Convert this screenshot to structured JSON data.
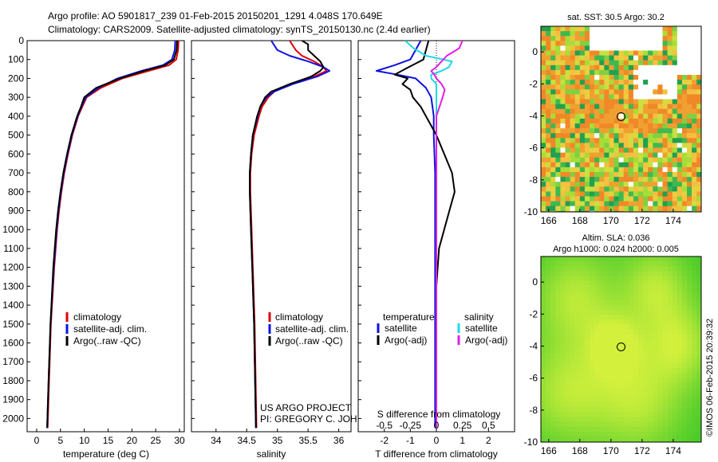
{
  "header": {
    "line1": "Argo profile: AO 5901817_239 01-Feb-2015 20150201_1291 4.048S 170.649E",
    "line2": "Climatology: CARS2009. Satellite-adjusted climatology: synTS_20150130.nc (2.4d earlier)"
  },
  "credits": {
    "project": "US ARGO PROJECT",
    "pi": "PI: GREGORY C. JOHNSON",
    "imos": "©IMOS 06-Feb-2015 20:39:32"
  },
  "colors": {
    "climatology": "#e00000",
    "satellite": "#1010e0",
    "argo": "#000000",
    "sat_salinity": "#20d8e8",
    "argo_salinity": "#e020e0"
  },
  "chart_data": [
    {
      "type": "line",
      "name": "temperature",
      "xlabel": "temperature (deg C)",
      "ylabel": "",
      "xlim": [
        -2,
        31
      ],
      "ylim": [
        2070,
        0
      ],
      "xticks": [
        "0",
        "5",
        "10",
        "15",
        "20",
        "25",
        "30"
      ],
      "xtick_values": [
        0,
        5,
        10,
        15,
        20,
        25,
        30
      ],
      "yticks": [
        "0",
        "100",
        "200",
        "300",
        "400",
        "500",
        "600",
        "700",
        "800",
        "900",
        "1000",
        "1100",
        "1200",
        "1300",
        "1400",
        "1500",
        "1600",
        "1700",
        "1800",
        "1900",
        "2000"
      ],
      "ytick_values": [
        0,
        100,
        200,
        300,
        400,
        500,
        600,
        700,
        800,
        900,
        1000,
        1100,
        1200,
        1300,
        1400,
        1500,
        1600,
        1700,
        1800,
        1900,
        2000
      ],
      "legend": [
        "climatology",
        "satellite-adj. clim.",
        "Argo(..raw -QC)"
      ],
      "series": [
        {
          "name": "climatology",
          "depth": [
            0,
            50,
            100,
            130,
            160,
            200,
            250,
            300,
            350,
            400,
            500,
            600,
            700,
            800,
            900,
            1000,
            1200,
            1500,
            1800,
            2050
          ],
          "values": [
            29.8,
            29.7,
            29.3,
            27.8,
            23.5,
            18.0,
            13.5,
            10.5,
            9.6,
            8.7,
            7.5,
            6.6,
            5.8,
            5.2,
            4.7,
            4.3,
            3.7,
            3.0,
            2.6,
            2.3
          ]
        },
        {
          "name": "satellite-adj. clim.",
          "depth": [
            0,
            50,
            100,
            130,
            160,
            200,
            250,
            300,
            350,
            400,
            500,
            600,
            700,
            800,
            900,
            1000,
            1200,
            1500,
            1800,
            2050
          ],
          "values": [
            29.1,
            29.0,
            28.4,
            26.5,
            22.0,
            17.0,
            13.0,
            10.3,
            9.4,
            8.6,
            7.4,
            6.5,
            5.7,
            5.1,
            4.6,
            4.2,
            3.6,
            2.9,
            2.5,
            2.2
          ]
        },
        {
          "name": "Argo(..raw -QC)",
          "depth": [
            0,
            50,
            100,
            130,
            160,
            200,
            250,
            300,
            350,
            400,
            500,
            600,
            700,
            800,
            900,
            1000,
            1200,
            1500,
            1800,
            2050
          ],
          "values": [
            29.5,
            29.4,
            28.8,
            27.0,
            22.5,
            17.5,
            12.5,
            10.0,
            9.3,
            8.5,
            7.3,
            6.4,
            5.6,
            5.0,
            4.5,
            4.1,
            3.5,
            2.9,
            2.5,
            2.2
          ]
        }
      ]
    },
    {
      "type": "line",
      "name": "salinity",
      "xlabel": "salinity",
      "ylabel": "",
      "xlim": [
        33.6,
        36.2
      ],
      "ylim": [
        2070,
        0
      ],
      "xticks": [
        "34",
        "34.5",
        "35",
        "35.5",
        "36"
      ],
      "xtick_values": [
        34,
        34.5,
        35,
        35.5,
        36
      ],
      "legend": [
        "climatology",
        "satellite-adj. clim.",
        "Argo(..raw -QC)"
      ],
      "series": [
        {
          "name": "climatology",
          "depth": [
            0,
            50,
            80,
            110,
            140,
            160,
            190,
            230,
            270,
            300,
            350,
            400,
            500,
            600,
            700,
            800,
            900,
            1000,
            1200,
            1500,
            2050
          ],
          "values": [
            35.2,
            35.3,
            35.4,
            35.6,
            35.75,
            35.8,
            35.6,
            35.2,
            34.95,
            34.85,
            34.75,
            34.7,
            34.62,
            34.58,
            34.56,
            34.56,
            34.57,
            34.58,
            34.6,
            34.63,
            34.66
          ]
        },
        {
          "name": "satellite-adj. clim.",
          "depth": [
            0,
            50,
            80,
            110,
            140,
            160,
            190,
            230,
            270,
            300,
            350,
            400,
            500,
            600,
            700,
            800,
            900,
            1000,
            1200,
            1500,
            2050
          ],
          "values": [
            34.9,
            35.0,
            35.2,
            35.5,
            35.75,
            35.85,
            35.65,
            35.25,
            34.95,
            34.82,
            34.72,
            34.68,
            34.6,
            34.57,
            34.55,
            34.55,
            34.56,
            34.57,
            34.59,
            34.62,
            34.65
          ]
        },
        {
          "name": "Argo(..raw -QC)",
          "depth": [
            0,
            20,
            50,
            80,
            110,
            140,
            160,
            190,
            230,
            270,
            300,
            350,
            400,
            500,
            600,
            700,
            800,
            900,
            1000,
            1200,
            1500,
            2050
          ],
          "values": [
            35.4,
            35.5,
            35.5,
            35.6,
            35.7,
            35.75,
            35.7,
            35.55,
            35.2,
            34.9,
            34.8,
            34.72,
            34.67,
            34.6,
            34.57,
            34.55,
            34.55,
            34.56,
            34.57,
            34.59,
            34.62,
            34.65
          ]
        }
      ],
      "annotations": [
        "US ARGO PROJECT",
        "PI: GREGORY C. JOHNSON"
      ]
    },
    {
      "type": "line",
      "name": "difference",
      "xlabel": "T difference from climatology",
      "xlabel_top": "S difference from climatology",
      "xlim": [
        -3,
        3
      ],
      "ylim": [
        2070,
        0
      ],
      "xticks": [
        "-2",
        "-1",
        "0",
        "1",
        "2"
      ],
      "xtick_values": [
        -2,
        -1,
        0,
        1,
        2
      ],
      "sticks": [
        "-0.5",
        "-0.25",
        "0",
        "0.25",
        "0.5"
      ],
      "stick_values": [
        -0.5,
        -0.25,
        0,
        0.25,
        0.5
      ],
      "legend_title_t": "temperature",
      "legend_title_s": "salinity",
      "legend": [
        "satellite",
        "Argo(-adj)",
        "satellite",
        "Argo(-adj)"
      ],
      "series": [
        {
          "name": "T satellite",
          "depth": [
            0,
            50,
            100,
            130,
            160,
            180,
            200,
            250,
            300,
            400,
            500,
            700,
            1000,
            1500,
            2050
          ],
          "values": [
            -0.6,
            -0.8,
            -1.0,
            -1.6,
            -2.3,
            -1.5,
            -0.8,
            -0.4,
            -0.2,
            -0.1,
            -0.1,
            -0.05,
            -0.05,
            -0.05,
            -0.05
          ]
        },
        {
          "name": "T Argo(-adj)",
          "depth": [
            0,
            100,
            150,
            180,
            200,
            230,
            260,
            300,
            350,
            400,
            450,
            500,
            600,
            700,
            800,
            900,
            1000,
            1100,
            1300,
            1500,
            1800,
            2050
          ],
          "values": [
            -0.3,
            -0.5,
            -1.2,
            -1.6,
            -1.1,
            -1.3,
            -1.0,
            -0.9,
            -0.6,
            -0.4,
            -0.2,
            0.0,
            0.3,
            0.6,
            0.7,
            0.5,
            0.3,
            0.1,
            0.0,
            0.0,
            0.0,
            0.0
          ]
        },
        {
          "name": "S satellite",
          "depth": [
            0,
            40,
            80,
            110,
            140,
            160,
            180,
            200,
            230,
            260,
            300,
            350,
            400,
            500,
            700,
            1000,
            1500,
            2050
          ],
          "values": [
            -0.3,
            -0.22,
            -0.1,
            0.15,
            0.12,
            0.05,
            -0.05,
            -0.05,
            0.0,
            0.0,
            0.0,
            0.0,
            0.0,
            0.0,
            0.0,
            0.0,
            0.0,
            0.0
          ]
        },
        {
          "name": "S Argo(-adj)",
          "depth": [
            0,
            40,
            80,
            110,
            140,
            160,
            180,
            200,
            230,
            260,
            300,
            350,
            400,
            500,
            700,
            1000,
            1500,
            2050
          ],
          "values": [
            0.25,
            0.22,
            0.1,
            0.05,
            0.0,
            -0.05,
            -0.02,
            0.0,
            0.05,
            0.08,
            0.06,
            0.03,
            0.0,
            0.0,
            0.0,
            0.0,
            0.0,
            0.0
          ]
        }
      ]
    },
    {
      "type": "heatmap",
      "name": "sst-map",
      "title": "sat. SST: 30.5 Argo: 30.2",
      "xticks": [
        "166",
        "168",
        "170",
        "172",
        "174"
      ],
      "xtick_values": [
        166,
        168,
        170,
        172,
        174
      ],
      "yticks": [
        "0",
        "-2",
        "-4",
        "-6",
        "-8",
        "-10"
      ],
      "ytick_values": [
        0,
        -2,
        -4,
        -6,
        -8,
        -10
      ],
      "xlim": [
        165.5,
        175.8
      ],
      "ylim": [
        -10,
        1.6
      ],
      "marker": [
        170.65,
        -4.05
      ]
    },
    {
      "type": "heatmap",
      "name": "sla-map",
      "title": "Altim. SLA: 0.036",
      "subtitle": "Argo h1000: 0.024 h2000: 0.005",
      "xticks": [
        "166",
        "168",
        "170",
        "172",
        "174"
      ],
      "xtick_values": [
        166,
        168,
        170,
        172,
        174
      ],
      "yticks": [
        "0",
        "-2",
        "-4",
        "-6",
        "-8",
        "-10"
      ],
      "ytick_values": [
        0,
        -2,
        -4,
        -6,
        -8,
        -10
      ],
      "xlim": [
        165.5,
        175.8
      ],
      "ylim": [
        -10,
        1.6
      ],
      "marker": [
        170.65,
        -4.05
      ]
    }
  ]
}
